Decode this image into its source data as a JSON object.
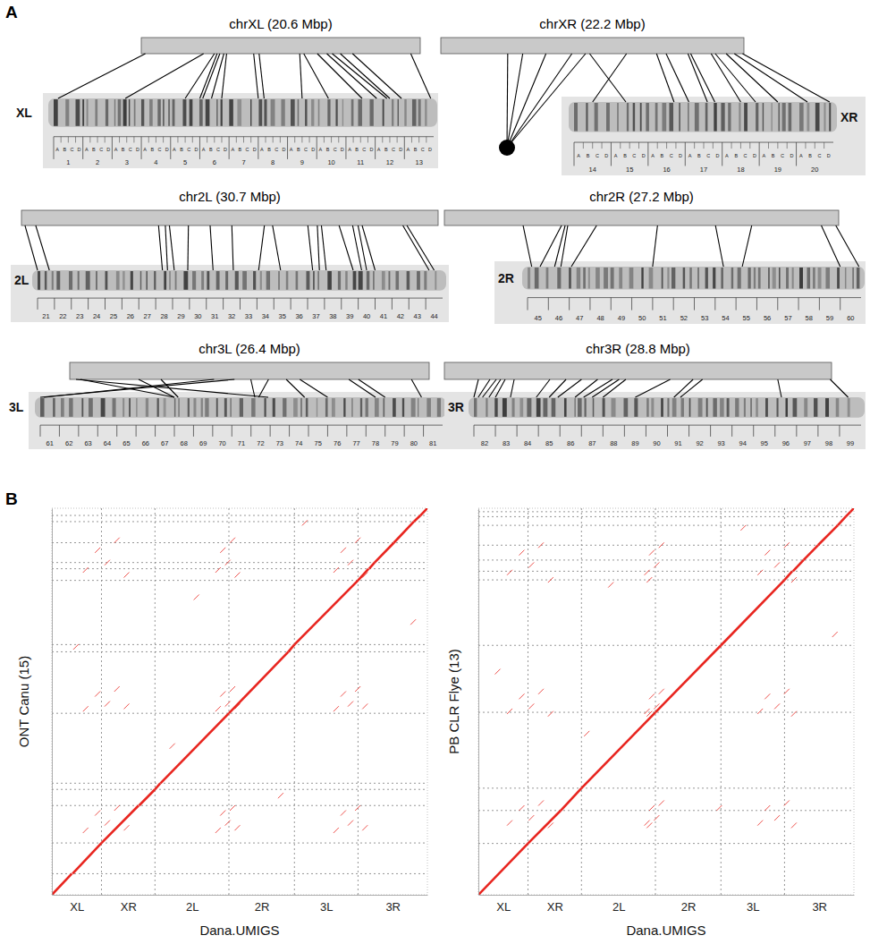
{
  "panel_labels": [
    "A",
    "B"
  ],
  "ideogram": {
    "arms": [
      {
        "title": "chrXL (20.6 Mbp)",
        "length": 20.6,
        "label": "XL",
        "divisions": [
          1,
          2,
          3,
          4,
          5,
          6,
          7,
          8,
          9,
          10,
          11,
          12,
          13
        ],
        "subdivisions": [
          "A",
          "B",
          "C",
          "D"
        ],
        "links": [
          [
            0.3,
            1.15
          ],
          [
            4.6,
            3.45
          ],
          [
            5.4,
            5.5
          ],
          [
            5.6,
            6.0
          ],
          [
            5.8,
            6.1
          ],
          [
            6.1,
            6.4
          ],
          [
            6.3,
            6.75
          ],
          [
            8.3,
            8.0
          ],
          [
            8.7,
            8.2
          ],
          [
            11.7,
            9.5
          ],
          [
            12.0,
            10.4
          ],
          [
            13.0,
            11.55
          ],
          [
            13.7,
            12.05
          ],
          [
            14.1,
            12.4
          ],
          [
            14.7,
            12.5
          ],
          [
            15.6,
            12.9
          ],
          [
            19.9,
            13.9
          ]
        ]
      },
      {
        "title": "chrXR (22.2 Mbp)",
        "length": 22.2,
        "label": "XR",
        "divisions": [
          14,
          15,
          16,
          17,
          18,
          19,
          20
        ],
        "subdivisions": [
          "A",
          "B",
          "C",
          "D"
        ],
        "links": [
          [
            10.9,
            15.4
          ],
          [
            13.6,
            14.5
          ],
          [
            15.8,
            16.7
          ],
          [
            16.5,
            17.1
          ],
          [
            18.1,
            17.6
          ],
          [
            18.3,
            17.8
          ],
          [
            19.8,
            18.5
          ],
          [
            20.1,
            18.9
          ],
          [
            20.9,
            19.5
          ],
          [
            21.5,
            20.3
          ],
          [
            22.1,
            20.9
          ]
        ],
        "chromocenter_links": [
          4.9,
          6.0,
          7.7,
          9.6,
          10.6
        ]
      },
      {
        "title": "chr2L (30.7 Mbp)",
        "length": 30.7,
        "label": "2L",
        "divisions": [
          21,
          22,
          23,
          24,
          25,
          26,
          27,
          28,
          29,
          30,
          31,
          32,
          33,
          34,
          35,
          36,
          37,
          38,
          39,
          40,
          41,
          42,
          43,
          44
        ],
        "links": [
          [
            0.26,
            21.0
          ],
          [
            1.05,
            21.7
          ],
          [
            10.1,
            28.4
          ],
          [
            10.6,
            28.7
          ],
          [
            10.9,
            29.1
          ],
          [
            12.3,
            29.9
          ],
          [
            13.9,
            31.4
          ],
          [
            15.5,
            32.6
          ],
          [
            17.9,
            34.1
          ],
          [
            18.5,
            35.4
          ],
          [
            21.1,
            37.3
          ],
          [
            21.8,
            37.7
          ],
          [
            22.1,
            38.1
          ],
          [
            23.4,
            39.7
          ],
          [
            24.4,
            40.2
          ],
          [
            24.8,
            40.5
          ],
          [
            25.1,
            41.0
          ],
          [
            28.1,
            44.2
          ],
          [
            28.4,
            44.5
          ]
        ]
      },
      {
        "title": "chr2R (27.2 Mbp)",
        "length": 27.2,
        "label": "2R",
        "divisions": [
          45,
          46,
          47,
          48,
          49,
          50,
          51,
          52,
          53,
          54,
          55,
          56,
          57,
          58,
          59,
          60
        ],
        "links": [
          [
            5.43,
            45.2
          ],
          [
            8.08,
            45.6
          ],
          [
            8.33,
            46.3
          ],
          [
            8.51,
            46.6
          ],
          [
            10.5,
            47.1
          ],
          [
            14.7,
            51.0
          ],
          [
            18.7,
            54.4
          ],
          [
            21.2,
            55.3
          ],
          [
            26.0,
            60.0
          ],
          [
            27.0,
            60.9
          ]
        ]
      },
      {
        "title": "chr3L (26.4 Mbp)",
        "length": 26.4,
        "label": "3L",
        "divisions": [
          61,
          62,
          63,
          64,
          65,
          66,
          67,
          68,
          69,
          70,
          71,
          72,
          73,
          74,
          75,
          76,
          77,
          78,
          79,
          80,
          81
        ],
        "links": [
          [
            0.46,
            72.9
          ],
          [
            0.79,
            68.0
          ],
          [
            5.06,
            68.0
          ],
          [
            6.7,
            68.2
          ],
          [
            10.6,
            61.2
          ],
          [
            12.1,
            61.0
          ],
          [
            13.3,
            72.2
          ],
          [
            14.6,
            72.4
          ],
          [
            15.9,
            74.8
          ],
          [
            16.9,
            76.0
          ],
          [
            20.5,
            78.5
          ],
          [
            21.2,
            79.0
          ],
          [
            25.1,
            80.9
          ]
        ]
      },
      {
        "title": "chr3R (28.8 Mbp)",
        "length": 28.8,
        "label": "3R",
        "divisions": [
          82,
          83,
          84,
          85,
          86,
          87,
          88,
          89,
          90,
          91,
          92,
          93,
          94,
          95,
          96,
          97,
          98,
          99
        ],
        "links": [
          [
            2.53,
            82.0
          ],
          [
            3.39,
            82.2
          ],
          [
            3.86,
            82.4
          ],
          [
            4.19,
            82.7
          ],
          [
            4.52,
            83.0
          ],
          [
            5.19,
            83.7
          ],
          [
            7.85,
            84.9
          ],
          [
            9.05,
            85.5
          ],
          [
            10.2,
            85.9
          ],
          [
            11.4,
            86.7
          ],
          [
            12.5,
            87.1
          ],
          [
            13.0,
            87.5
          ],
          [
            13.5,
            88.0
          ],
          [
            16.8,
            89.5
          ],
          [
            18.5,
            91.3
          ],
          [
            19.2,
            91.6
          ],
          [
            24.8,
            96.3
          ],
          [
            28.7,
            99.4
          ]
        ]
      }
    ]
  },
  "chart_data": [
    {
      "type": "dotplot",
      "ylabel": "ONT Canu (15)",
      "xlabel": "Dana.UMIGS",
      "color": "#e8251f",
      "grid": true,
      "tick_labels": "x",
      "xlim": [
        0,
        155.9
      ],
      "ylim": [
        0,
        155.9
      ],
      "xticks": [
        {
          "value": 10.3,
          "label": "XL"
        },
        {
          "value": 31.7,
          "label": "XR"
        },
        {
          "value": 58.15,
          "label": "2L"
        },
        {
          "value": 87.1,
          "label": "2R"
        },
        {
          "value": 113.9,
          "label": "3L"
        },
        {
          "value": 141.5,
          "label": "3R"
        }
      ],
      "x_boundaries": [
        20.6,
        42.8,
        73.5,
        100.7,
        127.1
      ],
      "y_boundaries": [
        8.5,
        20.9,
        36.0,
        42.5,
        45.0,
        73.2,
        98.0,
        100.9,
        126.8,
        131.5,
        134.0,
        142.0,
        150.5,
        153.0
      ],
      "segments": [
        [
          0,
          0,
          8.3,
          8.5
        ],
        [
          8.6,
          8.5,
          20.6,
          20.9
        ],
        [
          20.6,
          20.9,
          36,
          36
        ],
        [
          36.2,
          36,
          42.8,
          42.5
        ],
        [
          42.8,
          42.5,
          45,
          45
        ],
        [
          45.1,
          45,
          73.5,
          73.2
        ],
        [
          73.5,
          73.2,
          98.2,
          98
        ],
        [
          98.2,
          98,
          100.7,
          100.9
        ],
        [
          100.7,
          100.9,
          127.1,
          126.8
        ],
        [
          127.1,
          126.8,
          131.5,
          131.5
        ],
        [
          131.7,
          131.5,
          134,
          134
        ],
        [
          134,
          134,
          142,
          142
        ],
        [
          142,
          142,
          150.3,
          150.5
        ],
        [
          150.3,
          150.5,
          153,
          153
        ],
        [
          153,
          153,
          155.9,
          155.9
        ]
      ],
      "points": [
        [
          14,
          26
        ],
        [
          19,
          33
        ],
        [
          23,
          29
        ],
        [
          27,
          35
        ],
        [
          31,
          27
        ],
        [
          14,
          75
        ],
        [
          19,
          81
        ],
        [
          23,
          77
        ],
        [
          27,
          83
        ],
        [
          31,
          76
        ],
        [
          14,
          131
        ],
        [
          19,
          139
        ],
        [
          23,
          134
        ],
        [
          27,
          143
        ],
        [
          31,
          129
        ],
        [
          69,
          26
        ],
        [
          71,
          33
        ],
        [
          73,
          29
        ],
        [
          75,
          35
        ],
        [
          77,
          27
        ],
        [
          69,
          75
        ],
        [
          71,
          81
        ],
        [
          73,
          77
        ],
        [
          75,
          83
        ],
        [
          77,
          76
        ],
        [
          69,
          131
        ],
        [
          71,
          139
        ],
        [
          73,
          134
        ],
        [
          75,
          143
        ],
        [
          77,
          129
        ],
        [
          118,
          26
        ],
        [
          121,
          33
        ],
        [
          124,
          29
        ],
        [
          127,
          35
        ],
        [
          130,
          27
        ],
        [
          118,
          75
        ],
        [
          121,
          81
        ],
        [
          124,
          77
        ],
        [
          127,
          83
        ],
        [
          130,
          76
        ],
        [
          118,
          131
        ],
        [
          121,
          139
        ],
        [
          124,
          134
        ],
        [
          127,
          143
        ],
        [
          130,
          129
        ],
        [
          10,
          100
        ],
        [
          50,
          60
        ],
        [
          95,
          40
        ],
        [
          105,
          150
        ],
        [
          150,
          110
        ],
        [
          60,
          120
        ]
      ]
    },
    {
      "type": "dotplot",
      "ylabel": "PB CLR Flye (13)",
      "xlabel": "Dana.UMIGS",
      "color": "#e8251f",
      "grid": true,
      "tick_labels": "x",
      "xlim": [
        0,
        155.9
      ],
      "ylim": [
        0,
        155.9
      ],
      "xticks": [
        {
          "value": 10.3,
          "label": "XL"
        },
        {
          "value": 31.7,
          "label": "XR"
        },
        {
          "value": 58.15,
          "label": "2L"
        },
        {
          "value": 87.1,
          "label": "2R"
        },
        {
          "value": 113.9,
          "label": "3L"
        },
        {
          "value": 141.5,
          "label": "3R"
        }
      ],
      "x_boundaries": [
        20.6,
        42.8,
        73.5,
        100.7,
        127.1
      ],
      "y_boundaries": [
        20.7,
        34.0,
        43.0,
        73.6,
        100.6,
        127.0,
        130.5,
        135.0,
        141.0,
        149.0,
        152.5,
        154.5
      ],
      "segments": [
        [
          0,
          0,
          20.6,
          20.7
        ],
        [
          20.6,
          20.7,
          34.2,
          34.0
        ],
        [
          34.2,
          34.0,
          42.8,
          43.0
        ],
        [
          42.8,
          43.0,
          73.5,
          73.6
        ],
        [
          73.5,
          73.6,
          100.7,
          100.6
        ],
        [
          100.7,
          100.6,
          127.1,
          127.0
        ],
        [
          127.1,
          127.0,
          130.3,
          130.5
        ],
        [
          130.6,
          130.5,
          135.0,
          135.0
        ],
        [
          135.0,
          135.0,
          141.0,
          141.0
        ],
        [
          141.0,
          141.0,
          149.2,
          149.0
        ],
        [
          149.2,
          149.0,
          152.5,
          152.5
        ],
        [
          152.5,
          152.5,
          154.5,
          154.5
        ],
        [
          154.5,
          154.5,
          155.9,
          155.9
        ]
      ],
      "points": [
        [
          13,
          29
        ],
        [
          18,
          35
        ],
        [
          22,
          31
        ],
        [
          26,
          37
        ],
        [
          30,
          28
        ],
        [
          13,
          74
        ],
        [
          18,
          80
        ],
        [
          22,
          76
        ],
        [
          26,
          82
        ],
        [
          30,
          73
        ],
        [
          13,
          130
        ],
        [
          18,
          138
        ],
        [
          22,
          133
        ],
        [
          26,
          141
        ],
        [
          30,
          127
        ],
        [
          70,
          29
        ],
        [
          72,
          35
        ],
        [
          74,
          31
        ],
        [
          76,
          37
        ],
        [
          71,
          28
        ],
        [
          70,
          74
        ],
        [
          72,
          80
        ],
        [
          74,
          76
        ],
        [
          76,
          82
        ],
        [
          71,
          73
        ],
        [
          70,
          130
        ],
        [
          72,
          138
        ],
        [
          74,
          133
        ],
        [
          76,
          141
        ],
        [
          71,
          127
        ],
        [
          117,
          29
        ],
        [
          120,
          35
        ],
        [
          124,
          31
        ],
        [
          128,
          37
        ],
        [
          131,
          28
        ],
        [
          117,
          74
        ],
        [
          120,
          80
        ],
        [
          124,
          76
        ],
        [
          128,
          82
        ],
        [
          131,
          73
        ],
        [
          117,
          130
        ],
        [
          120,
          138
        ],
        [
          124,
          133
        ],
        [
          128,
          141
        ],
        [
          131,
          127
        ],
        [
          8,
          90
        ],
        [
          45,
          65
        ],
        [
          100,
          35
        ],
        [
          110,
          148
        ],
        [
          148,
          105
        ],
        [
          55,
          125
        ]
      ]
    }
  ]
}
